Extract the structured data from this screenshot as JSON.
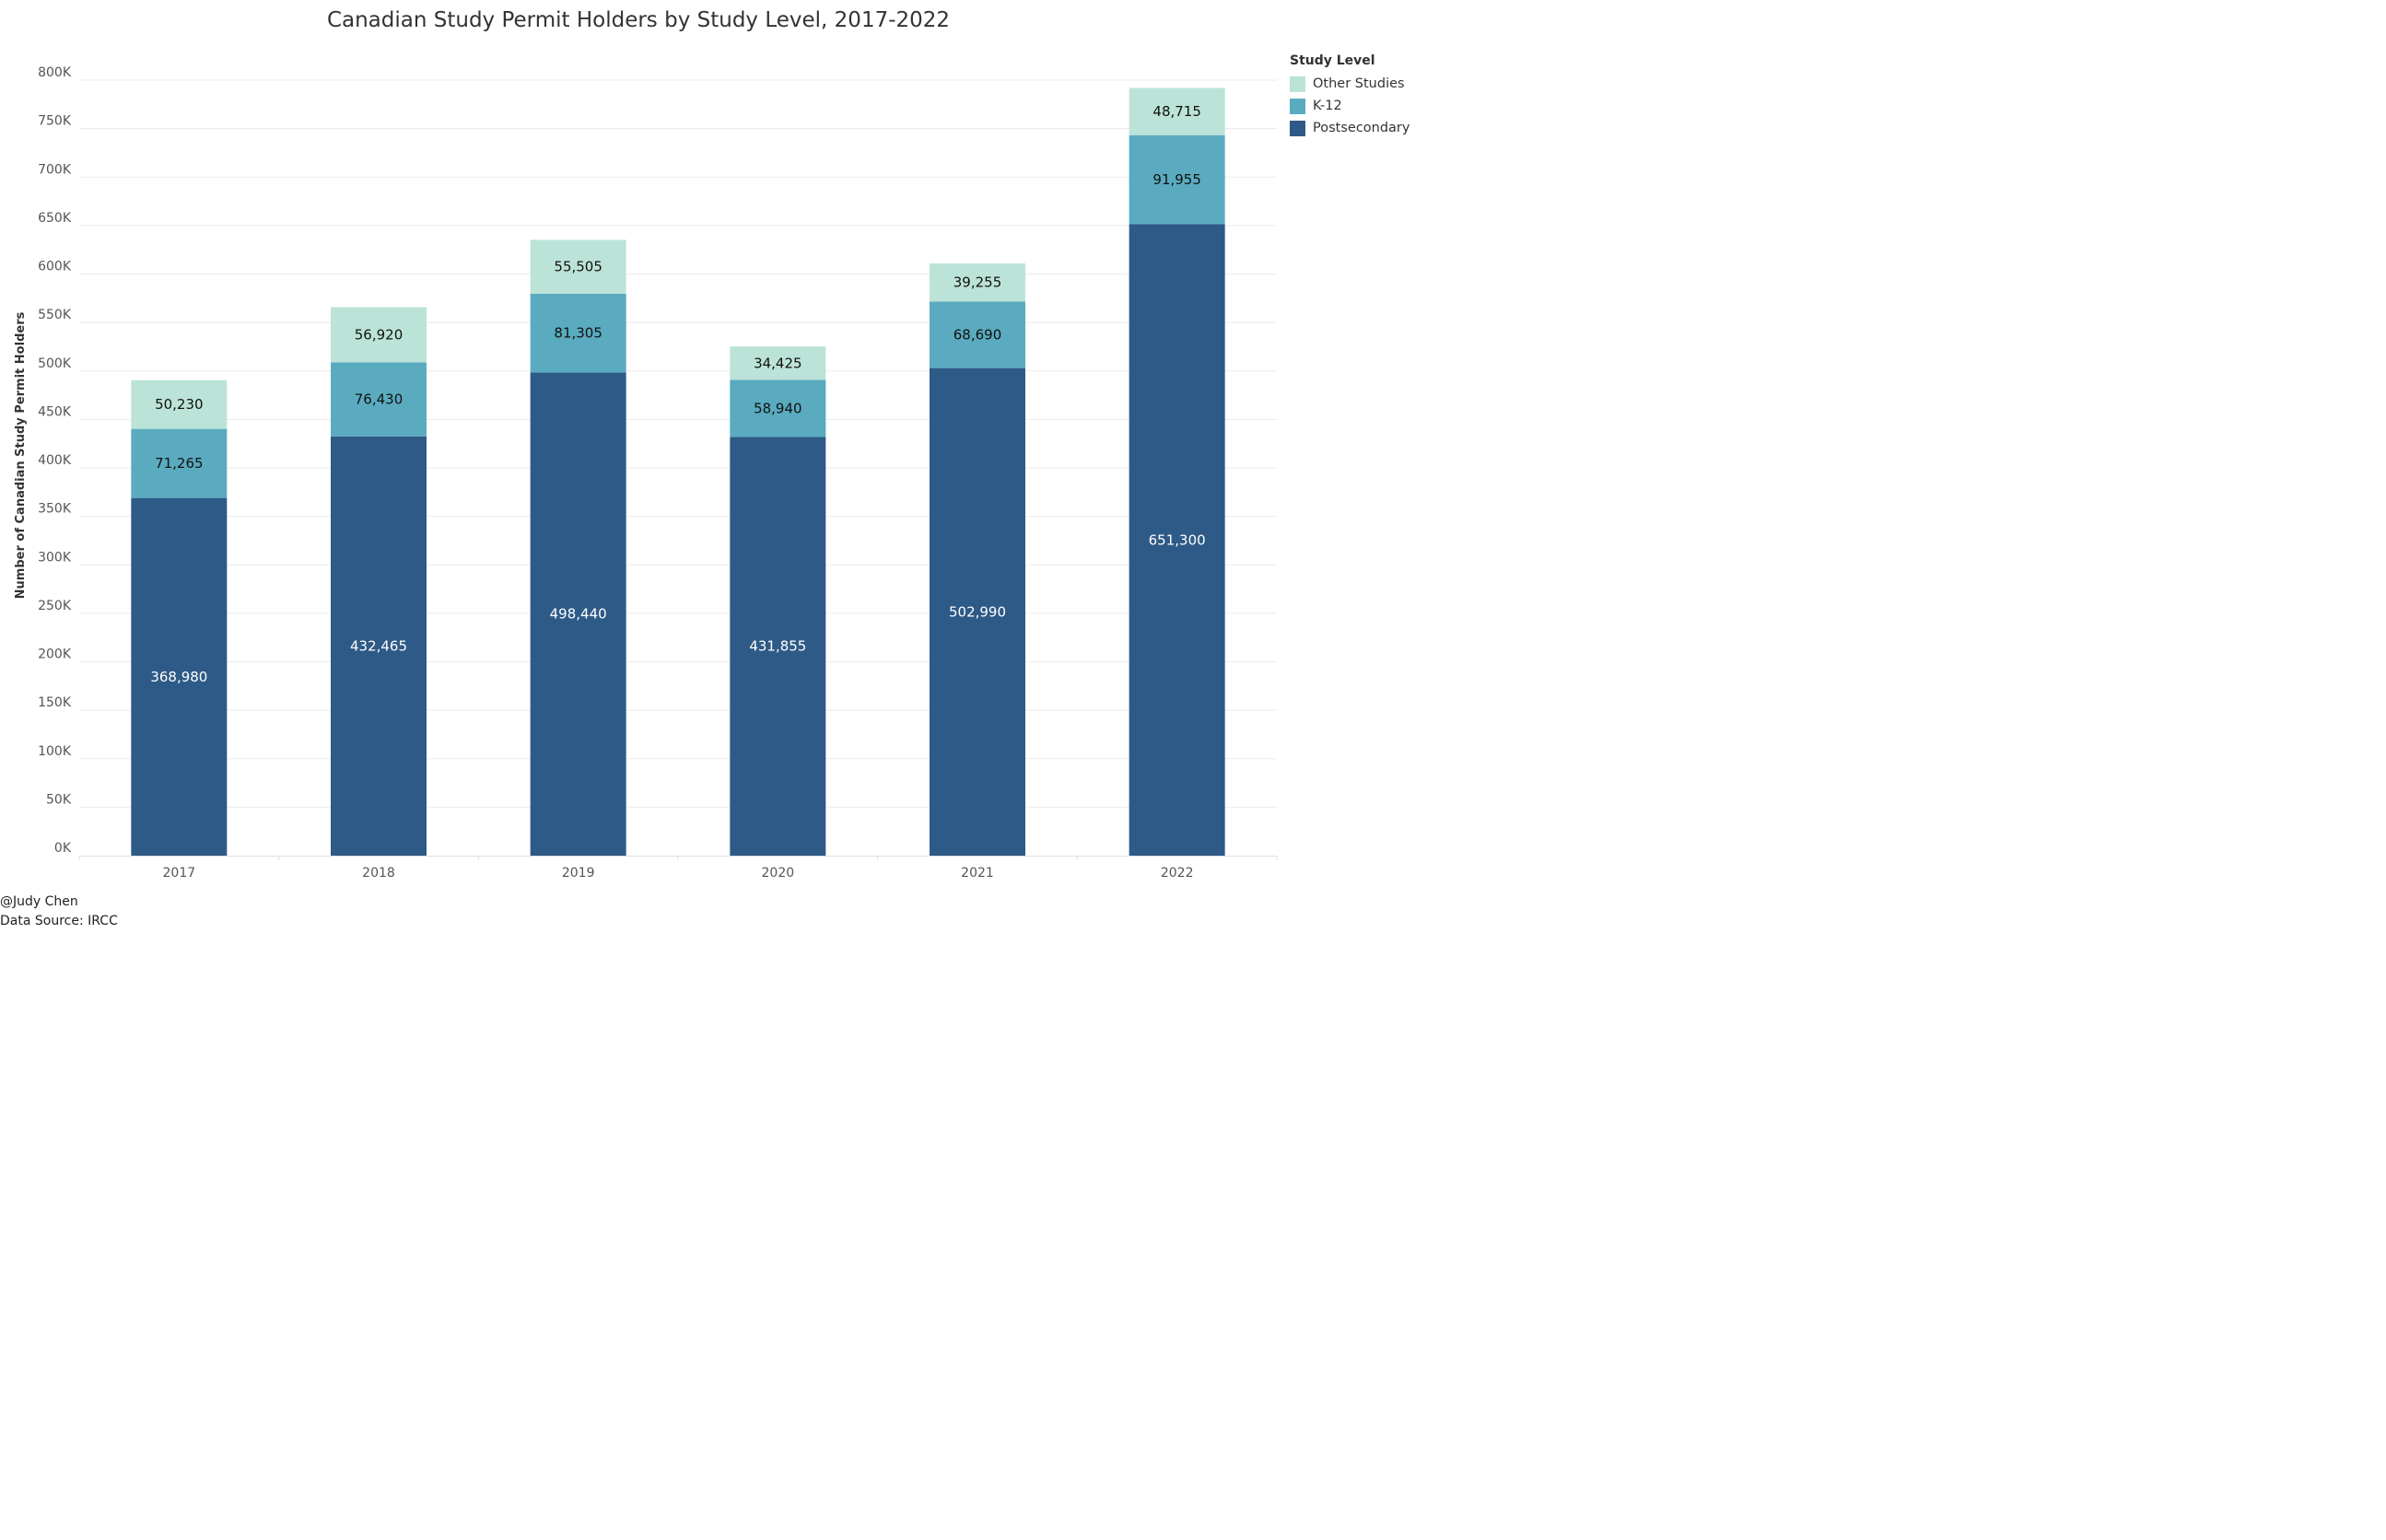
{
  "chart_data": {
    "type": "bar",
    "stacked": true,
    "title": "Canadian Study Permit Holders by Study Level, 2017-2022",
    "xlabel": "",
    "ylabel": "Number of Canadian Study Permit Holders",
    "categories": [
      "2017",
      "2018",
      "2019",
      "2020",
      "2021",
      "2022"
    ],
    "series": [
      {
        "name": "Postsecondary",
        "values": [
          368980,
          432465,
          498440,
          431855,
          502990,
          651300
        ],
        "labels": [
          "368,980",
          "432,465",
          "498,440",
          "431,855",
          "502,990",
          "651,300"
        ],
        "color": "#2e5a87",
        "label_color": "#ffffff"
      },
      {
        "name": "K-12",
        "values": [
          71265,
          76430,
          81305,
          58940,
          68690,
          91955
        ],
        "labels": [
          "71,265",
          "76,430",
          "81,305",
          "58,940",
          "68,690",
          "91,955"
        ],
        "color": "#5aabbf",
        "label_color": "#111111"
      },
      {
        "name": "Other Studies",
        "values": [
          50230,
          56920,
          55505,
          34425,
          39255,
          48715
        ],
        "labels": [
          "50,230",
          "56,920",
          "55,505",
          "34,425",
          "39,255",
          "48,715"
        ],
        "color": "#bce3d8",
        "label_color": "#111111"
      }
    ],
    "ylim": [
      0,
      800000
    ],
    "yticks": [
      0,
      50000,
      100000,
      150000,
      200000,
      250000,
      300000,
      350000,
      400000,
      450000,
      500000,
      550000,
      600000,
      650000,
      700000,
      750000,
      800000
    ],
    "ytick_labels": [
      "0K",
      "50K",
      "100K",
      "150K",
      "200K",
      "250K",
      "300K",
      "350K",
      "400K",
      "450K",
      "500K",
      "550K",
      "600K",
      "650K",
      "700K",
      "750K",
      "800K"
    ],
    "grid": true,
    "legend": {
      "title": "Study Level",
      "position": "top-right",
      "items": [
        {
          "name": "Other Studies",
          "color": "#bce3d8"
        },
        {
          "name": "K-12",
          "color": "#5aabbf"
        },
        {
          "name": "Postsecondary",
          "color": "#2e5a87"
        }
      ]
    }
  },
  "footer": {
    "author": "@Judy Chen",
    "source": "Data Source: IRCC"
  }
}
